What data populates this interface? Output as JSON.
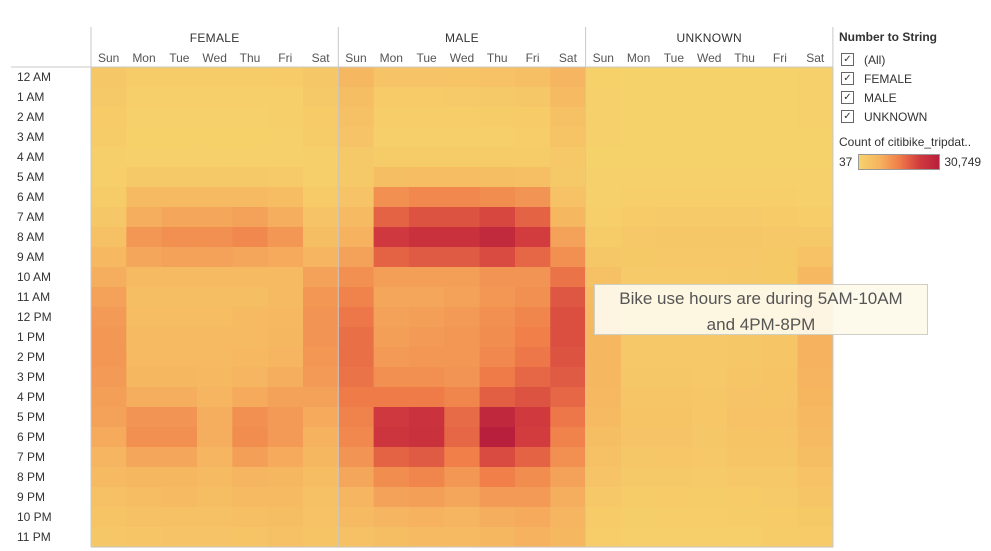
{
  "chart_data": {
    "type": "heatmap",
    "panels": [
      "FEMALE",
      "MALE",
      "UNKNOWN"
    ],
    "days": [
      "Sun",
      "Mon",
      "Tue",
      "Wed",
      "Thu",
      "Fri",
      "Sat"
    ],
    "hours": [
      "12 AM",
      "1 AM",
      "2 AM",
      "3 AM",
      "4 AM",
      "5 AM",
      "6 AM",
      "7 AM",
      "8 AM",
      "9 AM",
      "10 AM",
      "11 AM",
      "12 PM",
      "1 PM",
      "2 PM",
      "3 PM",
      "4 PM",
      "5 PM",
      "6 PM",
      "7 PM",
      "8 PM",
      "9 PM",
      "10 PM",
      "11 PM"
    ],
    "value_range": [
      37,
      30749
    ],
    "values": {
      "FEMALE": [
        [
          2000,
          1000,
          1000,
          1000,
          1000,
          1200,
          2000
        ],
        [
          1500,
          500,
          500,
          500,
          500,
          600,
          1500
        ],
        [
          1200,
          300,
          300,
          300,
          300,
          400,
          1200
        ],
        [
          900,
          200,
          200,
          200,
          200,
          300,
          900
        ],
        [
          500,
          300,
          300,
          300,
          300,
          300,
          500
        ],
        [
          600,
          1500,
          1500,
          1500,
          1500,
          1400,
          600
        ],
        [
          1000,
          4500,
          4800,
          4800,
          4500,
          4200,
          1200
        ],
        [
          2000,
          7000,
          8000,
          8000,
          8500,
          7000,
          2500
        ],
        [
          3500,
          10000,
          11000,
          11000,
          12000,
          10000,
          4000
        ],
        [
          5000,
          8000,
          8500,
          8500,
          8000,
          7500,
          6000
        ],
        [
          7000,
          4500,
          4500,
          4500,
          4500,
          4500,
          8500
        ],
        [
          8500,
          4000,
          4000,
          4000,
          4000,
          4500,
          10000
        ],
        [
          9500,
          4200,
          4200,
          4200,
          4500,
          5000,
          10500
        ],
        [
          10000,
          4500,
          4500,
          4500,
          4800,
          5500,
          10500
        ],
        [
          10000,
          4800,
          4800,
          4500,
          5000,
          6000,
          10000
        ],
        [
          9500,
          5500,
          5500,
          5000,
          6000,
          7000,
          9500
        ],
        [
          9000,
          7000,
          7000,
          6000,
          7500,
          8500,
          8500
        ],
        [
          8500,
          10500,
          10500,
          7000,
          11000,
          9500,
          7500
        ],
        [
          7500,
          11000,
          11000,
          7000,
          11500,
          9500,
          6500
        ],
        [
          6000,
          8000,
          8000,
          6000,
          9000,
          7500,
          5500
        ],
        [
          4500,
          5500,
          5500,
          4800,
          6000,
          5500,
          4200
        ],
        [
          3500,
          4200,
          4500,
          4000,
          4500,
          4500,
          3500
        ],
        [
          2800,
          3200,
          3500,
          3200,
          3800,
          4000,
          3000
        ],
        [
          2000,
          2200,
          2500,
          2500,
          2800,
          3200,
          2800
        ]
      ],
      "MALE": [
        [
          5500,
          2500,
          2500,
          2800,
          3000,
          3800,
          6000
        ],
        [
          4000,
          1200,
          1200,
          1300,
          1500,
          2000,
          4500
        ],
        [
          3200,
          800,
          800,
          800,
          900,
          1200,
          3500
        ],
        [
          2500,
          500,
          500,
          500,
          600,
          800,
          2800
        ],
        [
          1500,
          900,
          900,
          900,
          900,
          1000,
          1800
        ],
        [
          1500,
          4000,
          4200,
          4200,
          4000,
          3800,
          1500
        ],
        [
          2500,
          11000,
          12000,
          12000,
          11500,
          10500,
          3000
        ],
        [
          4500,
          17000,
          19000,
          19000,
          20500,
          17000,
          5500
        ],
        [
          6500,
          23000,
          25000,
          25000,
          27500,
          22000,
          8500
        ],
        [
          8500,
          17000,
          18000,
          18000,
          20000,
          16500,
          11000
        ],
        [
          11000,
          9000,
          9000,
          9000,
          10500,
          10500,
          15000
        ],
        [
          13000,
          8000,
          8000,
          8500,
          10000,
          11000,
          18500
        ],
        [
          14500,
          8500,
          9000,
          9500,
          11000,
          12500,
          19500
        ],
        [
          15500,
          9000,
          9500,
          10000,
          11500,
          13500,
          19500
        ],
        [
          15500,
          9500,
          10000,
          10000,
          12000,
          14500,
          19000
        ],
        [
          15000,
          11000,
          11000,
          10500,
          14000,
          16500,
          18000
        ],
        [
          14000,
          14000,
          14000,
          12500,
          17500,
          19000,
          16500
        ],
        [
          13000,
          23000,
          24500,
          16000,
          28000,
          22500,
          14500
        ],
        [
          12000,
          24000,
          25000,
          16500,
          30749,
          22000,
          13000
        ],
        [
          10500,
          17000,
          18000,
          13500,
          20000,
          17000,
          11000
        ],
        [
          8000,
          11500,
          12500,
          10000,
          13500,
          11500,
          8500
        ],
        [
          6000,
          8500,
          9000,
          8000,
          9500,
          9500,
          7000
        ],
        [
          4500,
          6000,
          6500,
          6000,
          7000,
          7500,
          6000
        ],
        [
          3500,
          4000,
          4500,
          4500,
          5500,
          6500,
          5500
        ]
      ],
      "UNKNOWN": [
        [
          200,
          60,
          60,
          60,
          60,
          80,
          150
        ],
        [
          150,
          40,
          40,
          40,
          40,
          50,
          120
        ],
        [
          120,
          37,
          37,
          37,
          37,
          40,
          100
        ],
        [
          100,
          37,
          37,
          37,
          37,
          37,
          80
        ],
        [
          80,
          40,
          40,
          40,
          40,
          40,
          60
        ],
        [
          100,
          150,
          150,
          150,
          150,
          150,
          100
        ],
        [
          300,
          600,
          600,
          600,
          600,
          500,
          300
        ],
        [
          600,
          1200,
          1300,
          1300,
          1300,
          1100,
          800
        ],
        [
          1000,
          1800,
          1900,
          1900,
          2000,
          1700,
          1500
        ],
        [
          2000,
          1600,
          1700,
          1700,
          1800,
          1600,
          3000
        ],
        [
          3500,
          1400,
          1400,
          1400,
          1500,
          1600,
          5000
        ],
        [
          4500,
          1500,
          1500,
          1500,
          1600,
          1800,
          6000
        ],
        [
          5000,
          1600,
          1600,
          1600,
          1800,
          2000,
          6500
        ],
        [
          5500,
          1700,
          1700,
          1700,
          1900,
          2200,
          6500
        ],
        [
          5500,
          1800,
          1800,
          1700,
          2000,
          2400,
          6500
        ],
        [
          5500,
          2000,
          2000,
          1800,
          2200,
          2700,
          6200
        ],
        [
          5000,
          2300,
          2300,
          2000,
          2500,
          2900,
          5800
        ],
        [
          4500,
          2700,
          2700,
          2100,
          3000,
          3000,
          5200
        ],
        [
          4000,
          2600,
          2600,
          2000,
          2900,
          2800,
          4700
        ],
        [
          3500,
          2000,
          2100,
          1800,
          2300,
          2300,
          4000
        ],
        [
          2500,
          1500,
          1500,
          1300,
          1700,
          1800,
          3000
        ],
        [
          1800,
          1000,
          1100,
          1000,
          1200,
          1400,
          2200
        ],
        [
          1200,
          700,
          800,
          800,
          900,
          1100,
          1600
        ],
        [
          800,
          400,
          500,
          500,
          600,
          900,
          1200
        ]
      ]
    }
  },
  "legend": {
    "filter_title": "Number to String",
    "filter_items": [
      {
        "label": "(All)",
        "checked": true
      },
      {
        "label": "FEMALE",
        "checked": true
      },
      {
        "label": "MALE",
        "checked": true
      },
      {
        "label": "UNKNOWN",
        "checked": true
      }
    ],
    "color_title": "Count of citibike_tripdat..",
    "color_min": "37",
    "color_max": "30,749",
    "ramp_colors": [
      "#f6d26b",
      "#f6b560",
      "#f07e4a",
      "#d23c3e",
      "#b81f3c"
    ]
  },
  "annotation": {
    "line1": "Bike use hours are during 5AM-10AM",
    "line2": "and 4PM-8PM"
  }
}
